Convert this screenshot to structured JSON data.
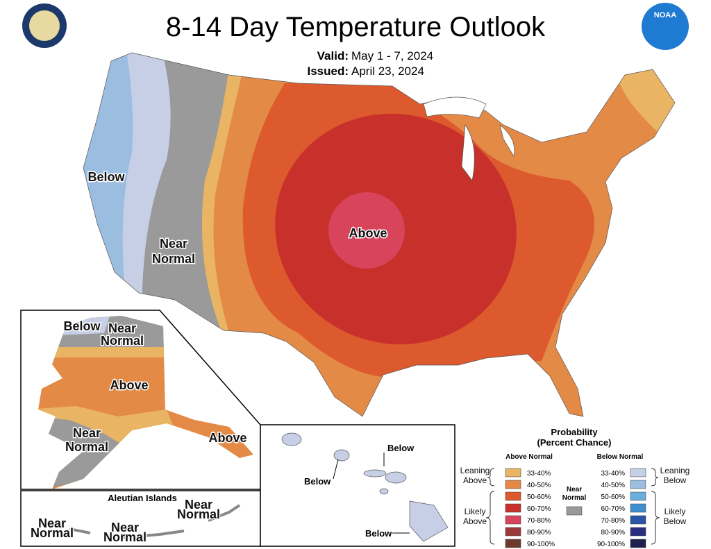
{
  "header": {
    "title": "8-14 Day Temperature Outlook",
    "valid_label": "Valid:",
    "valid": "May 1 - 7, 2024",
    "issued_label": "Issued:",
    "issued": "April 23, 2024",
    "logo": "NOAA"
  },
  "conus_labels": [
    [
      "Below"
    ],
    [
      "Near",
      "Normal"
    ],
    [
      "Above"
    ]
  ],
  "alaska_labels": [
    [
      "Below"
    ],
    [
      "Near",
      "Normal"
    ],
    [
      "Above"
    ],
    [
      "Near",
      "Normal"
    ],
    [
      "Above"
    ]
  ],
  "aleutian": {
    "title": "Aleutian Islands",
    "labels": [
      [
        "Near",
        "Normal"
      ],
      [
        "Near",
        "Normal"
      ],
      [
        "Near",
        "Normal"
      ]
    ]
  },
  "hawaii_labels": [
    "Below",
    "Below",
    "Below"
  ],
  "legend": {
    "title": [
      "Probability",
      "(Percent Chance)"
    ],
    "above_heading": "Above Normal",
    "below_heading": "Below Normal",
    "above": [
      {
        "range": "33-40%",
        "color": "#e9b565"
      },
      {
        "range": "40-50%",
        "color": "#e48a47"
      },
      {
        "range": "50-60%",
        "color": "#dc5a2e"
      },
      {
        "range": "60-70%",
        "color": "#c8312b"
      },
      {
        "range": "70-80%",
        "color": "#d8445c"
      },
      {
        "range": "80-90%",
        "color": "#9c3a3a"
      },
      {
        "range": "90-100%",
        "color": "#6b3a2a"
      }
    ],
    "below": [
      {
        "range": "33-40%",
        "color": "#c6cfe6"
      },
      {
        "range": "40-50%",
        "color": "#9bbde0"
      },
      {
        "range": "50-60%",
        "color": "#6aaede"
      },
      {
        "range": "60-70%",
        "color": "#3f8fd0"
      },
      {
        "range": "70-80%",
        "color": "#2855a8"
      },
      {
        "range": "80-90%",
        "color": "#2a2e80"
      },
      {
        "range": "90-100%",
        "color": "#1e2050"
      }
    ],
    "near": {
      "label": [
        "Near",
        "Normal"
      ],
      "color": "#9a9a9a"
    },
    "leaning_above": [
      "Leaning",
      "Above"
    ],
    "likely_above": [
      "Likely",
      "Above"
    ],
    "leaning_below": [
      "Leaning",
      "Below"
    ],
    "likely_below": [
      "Likely",
      "Below"
    ]
  }
}
